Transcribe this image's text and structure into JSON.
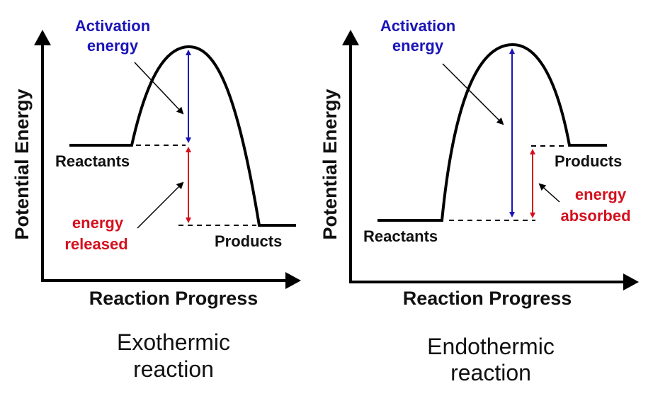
{
  "colors": {
    "activation": "#1a14b8",
    "energy_change": "#d4101e",
    "curve": "#000000"
  },
  "exothermic": {
    "activation_line1": "Activation",
    "activation_line2": "energy",
    "reactants": "Reactants",
    "products": "Products",
    "energy_line1": "energy",
    "energy_line2": "released",
    "y_axis": "Potential Energy",
    "x_axis": "Reaction Progress",
    "caption_line1": "Exothermic",
    "caption_line2": "reaction"
  },
  "endothermic": {
    "activation_line1": "Activation",
    "activation_line2": "energy",
    "reactants": "Reactants",
    "products": "Products",
    "energy_line1": "energy",
    "energy_line2": "absorbed",
    "y_axis": "Potential Energy",
    "x_axis": "Reaction Progress",
    "caption_line1": "Endothermic",
    "caption_line2": "reaction"
  }
}
